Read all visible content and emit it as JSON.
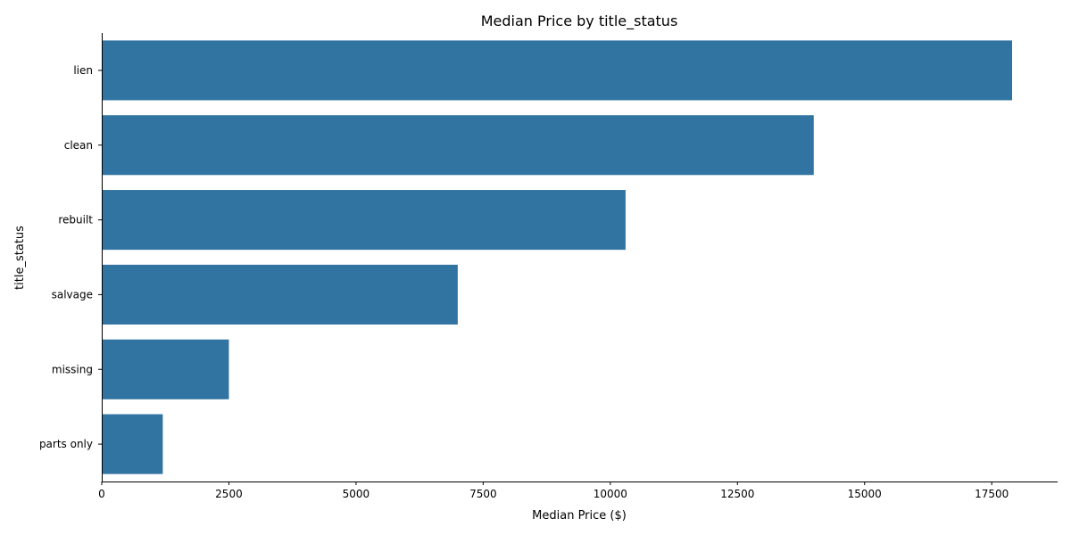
{
  "chart_data": {
    "type": "bar",
    "orientation": "horizontal",
    "title": "Median Price by title_status",
    "xlabel": "Median Price ($)",
    "ylabel": "title_status",
    "categories": [
      "lien",
      "clean",
      "rebuilt",
      "salvage",
      "missing",
      "parts only"
    ],
    "values": [
      17900,
      14000,
      10300,
      7000,
      2500,
      1200
    ],
    "xlim": [
      0,
      18795
    ],
    "xticks": [
      0,
      2500,
      5000,
      7500,
      10000,
      12500,
      15000,
      17500
    ],
    "xtick_labels": [
      "0",
      "2500",
      "5000",
      "7500",
      "10000",
      "12500",
      "15000",
      "17500"
    ],
    "grid": false,
    "bar_color": "#3274a1"
  }
}
